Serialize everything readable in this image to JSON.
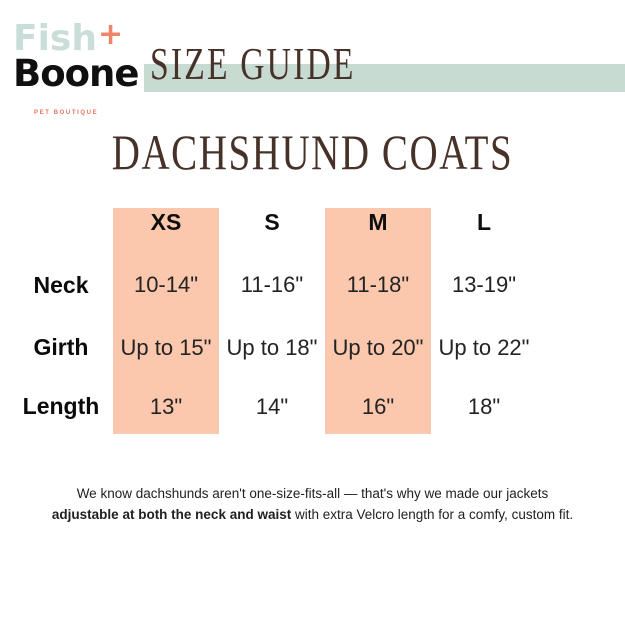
{
  "logo": {
    "fish": "Fish",
    "plus": "+",
    "boone": "Boone",
    "tagline": "PET BOUTIQUE"
  },
  "header": {
    "title": "SIZE GUIDE"
  },
  "page_title": "DACHSHUND COATS",
  "size_table": {
    "columns": [
      "XS",
      "S",
      "M",
      "L"
    ],
    "highlighted_columns": [
      "XS",
      "M"
    ],
    "rows": [
      {
        "label": "Neck",
        "values": [
          "10-14\"",
          "11-16\"",
          "11-18\"",
          "13-19\""
        ]
      },
      {
        "label": "Girth",
        "values": [
          "Up to 15\"",
          "Up to 18\"",
          "Up to 20\"",
          "Up to 22\""
        ]
      },
      {
        "label": "Length",
        "values": [
          "13\"",
          "14\"",
          "16\"",
          "18\""
        ]
      }
    ]
  },
  "footnote": {
    "line1": "We know dachshunds aren't one-size-fits-all — that's why we made our jackets",
    "line2_bold": "adjustable at both the neck and waist",
    "line2_rest": " with extra Velcro length for a comfy, custom fit."
  },
  "colors": {
    "mint_band": "#C7DBD3",
    "mint_logo": "#C9DED8",
    "peach_highlight": "#FBC8AE",
    "brown_heading": "#47322A",
    "coral_accent": "#F0846A",
    "coral_tagline": "#EA7260",
    "text_black": "#0e0e0e"
  }
}
